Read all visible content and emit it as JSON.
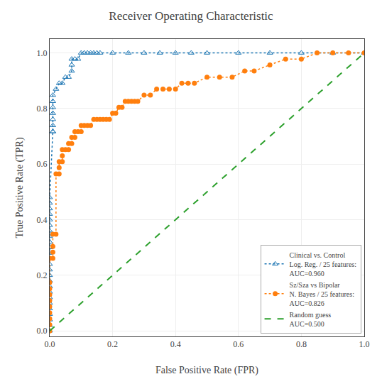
{
  "chart_data": {
    "type": "line",
    "title": "Receiver Operating Characteristic",
    "xlabel": "False Positive Rate (FPR)",
    "ylabel": "True Positive Rate (TPR)",
    "xlim": [
      0.0,
      1.0
    ],
    "ylim": [
      -0.02,
      1.05
    ],
    "xticks": [
      {
        "value": 0,
        "label": "0.0"
      },
      0.2,
      0.4,
      0.6,
      0.8,
      {
        "value": 1,
        "label": "1.0"
      }
    ],
    "yticks": [
      {
        "value": 0,
        "label": "0.0"
      },
      0.2,
      0.4,
      0.6,
      0.8,
      {
        "value": 1,
        "label": "1.0"
      }
    ],
    "grid": true,
    "legend": "lower right",
    "series": [
      {
        "name": "Clinical vs. Control\nLog. Reg. / 25 features:\nAUC=0.960",
        "marker": "triangle",
        "line_style": "dotted",
        "x": [
          0.0,
          0.0,
          0.0,
          0.0,
          0.0,
          0.0,
          0.0,
          0.0,
          0.0,
          0.0,
          0.0,
          0.0,
          0.0,
          0.0,
          0.0,
          0.0,
          0.0,
          0.0,
          0.0,
          0.0,
          0.0,
          0.0,
          0.0,
          0.0,
          0.0,
          0.01,
          0.01,
          0.01,
          0.01,
          0.01,
          0.01,
          0.01,
          0.01,
          0.02,
          0.03,
          0.04,
          0.05,
          0.06,
          0.07,
          0.07,
          0.07,
          0.08,
          0.09,
          0.1,
          0.11,
          0.12,
          0.13,
          0.14,
          0.15,
          0.16,
          0.2,
          0.25,
          0.3,
          0.35,
          0.4,
          0.45,
          0.5,
          0.6,
          0.7,
          0.8,
          0.9,
          1.0
        ],
        "values": [
          0.0,
          0.02,
          0.04,
          0.06,
          0.08,
          0.1,
          0.12,
          0.14,
          0.16,
          0.18,
          0.2,
          0.22,
          0.24,
          0.26,
          0.28,
          0.3,
          0.32,
          0.34,
          0.36,
          0.38,
          0.4,
          0.42,
          0.44,
          0.46,
          0.48,
          0.717,
          0.717,
          0.739,
          0.761,
          0.783,
          0.804,
          0.826,
          0.848,
          0.87,
          0.891,
          0.891,
          0.913,
          0.913,
          0.935,
          0.957,
          0.978,
          0.978,
          0.978,
          1.0,
          1.0,
          1.0,
          1.0,
          1.0,
          1.0,
          1.0,
          1.0,
          1.0,
          1.0,
          1.0,
          1.0,
          1.0,
          1.0,
          1.0,
          1.0,
          1.0,
          1.0,
          1.0
        ]
      },
      {
        "name": "Sz/Sza vs Bipolar\nN. Bayes / 25 features:\nAUC=0.826",
        "marker": "circle",
        "line_style": "dotted",
        "x": [
          0.0,
          0.0,
          0.0,
          0.0,
          0.0,
          0.0,
          0.0,
          0.0,
          0.0,
          0.0,
          0.01,
          0.01,
          0.01,
          0.01,
          0.02,
          0.02,
          0.03,
          0.03,
          0.03,
          0.04,
          0.04,
          0.04,
          0.05,
          0.06,
          0.06,
          0.07,
          0.07,
          0.08,
          0.08,
          0.09,
          0.1,
          0.1,
          0.11,
          0.12,
          0.13,
          0.14,
          0.15,
          0.16,
          0.17,
          0.18,
          0.19,
          0.2,
          0.21,
          0.22,
          0.23,
          0.24,
          0.25,
          0.26,
          0.27,
          0.28,
          0.3,
          0.32,
          0.34,
          0.36,
          0.38,
          0.4,
          0.42,
          0.44,
          0.46,
          0.5,
          0.54,
          0.58,
          0.62,
          0.65,
          0.7,
          0.75,
          0.8,
          0.85,
          0.9,
          0.95,
          1.0
        ],
        "values": [
          0.0,
          0.022,
          0.044,
          0.065,
          0.087,
          0.109,
          0.13,
          0.152,
          0.174,
          0.261,
          0.261,
          0.283,
          0.304,
          0.348,
          0.348,
          0.565,
          0.565,
          0.587,
          0.609,
          0.609,
          0.63,
          0.652,
          0.652,
          0.652,
          0.674,
          0.674,
          0.696,
          0.696,
          0.717,
          0.717,
          0.717,
          0.739,
          0.739,
          0.739,
          0.739,
          0.761,
          0.761,
          0.761,
          0.761,
          0.761,
          0.761,
          0.783,
          0.783,
          0.804,
          0.804,
          0.826,
          0.826,
          0.826,
          0.826,
          0.826,
          0.848,
          0.848,
          0.87,
          0.87,
          0.87,
          0.87,
          0.891,
          0.891,
          0.891,
          0.913,
          0.913,
          0.913,
          0.935,
          0.935,
          0.957,
          0.978,
          0.978,
          1.0,
          1.0,
          1.0,
          1.0
        ]
      },
      {
        "name": "Random guess\nAUC=0.500",
        "line_style": "dashed",
        "x": [
          0,
          1
        ],
        "values": [
          0,
          1
        ]
      }
    ]
  }
}
